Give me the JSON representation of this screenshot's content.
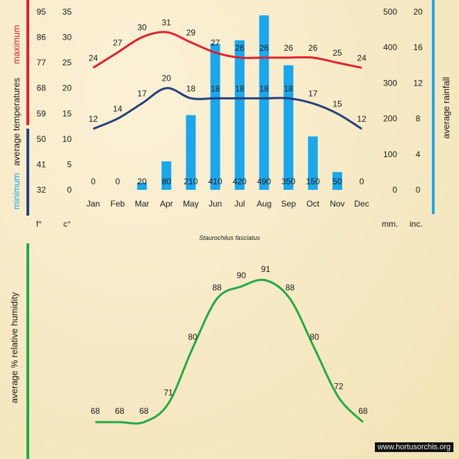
{
  "caption": "Staurochilus fasciatus",
  "watermark": "www.hortusorchis.org",
  "unit_labels": {
    "fahrenheit": "f°",
    "celsius": "c°",
    "mm": "mm.",
    "inches": "inc."
  },
  "axis_titles": {
    "temp_minimum": "minimum",
    "temp_average": "average",
    "temp_temperatures": "temperatures",
    "temp_maximum": "maximum",
    "rainfall": "average rainfall",
    "humidity": "average %  relative humidity"
  },
  "colors": {
    "max": "#e0202a",
    "min": "#233f7c",
    "rain": "#1aa7ec",
    "humidity": "#22a845",
    "left_bar_red": "#e0202a",
    "left_bar_blue": "#233f7c",
    "right_bar": "#1aa7ec",
    "hum_bar": "#22a845"
  },
  "chart_data": [
    {
      "type": "bar",
      "title": "",
      "categories": [
        "Jan",
        "Feb",
        "Mar",
        "Apr",
        "May",
        "Jun",
        "Jul",
        "Aug",
        "Sep",
        "Oct",
        "Nov",
        "Dec"
      ],
      "series": [
        {
          "name": "maximum",
          "type": "line",
          "axis": "celsius",
          "values": [
            24,
            27,
            30,
            31,
            29,
            27,
            26,
            26,
            26,
            26,
            25,
            24
          ]
        },
        {
          "name": "minimum",
          "type": "line",
          "axis": "celsius",
          "values": [
            12,
            14,
            17,
            20,
            18,
            18,
            18,
            18,
            18,
            17,
            15,
            12
          ]
        },
        {
          "name": "average rainfall",
          "type": "bar",
          "axis": "mm",
          "values": [
            0,
            0,
            20,
            80,
            210,
            410,
            420,
            490,
            350,
            150,
            50,
            0
          ]
        }
      ],
      "axes": {
        "fahrenheit": {
          "ticks": [
            32,
            41,
            50,
            59,
            68,
            77,
            86,
            95
          ]
        },
        "celsius": {
          "ticks": [
            0,
            5,
            10,
            15,
            20,
            25,
            30,
            35
          ],
          "range": [
            0,
            35
          ]
        },
        "mm": {
          "ticks": [
            0,
            100,
            200,
            300,
            400,
            500
          ],
          "range": [
            0,
            500
          ]
        },
        "inches": {
          "ticks": [
            0,
            4,
            8,
            12,
            16,
            20
          ]
        }
      },
      "grid": false
    },
    {
      "type": "line",
      "title": "",
      "categories": [
        "Jan",
        "Feb",
        "Mar",
        "Apr",
        "May",
        "Jun",
        "Jul",
        "Aug",
        "Sep",
        "Oct",
        "Nov",
        "Dec"
      ],
      "series": [
        {
          "name": "average % relative humidity",
          "values": [
            68,
            68,
            68,
            71,
            80,
            88,
            90,
            91,
            88,
            80,
            72,
            68
          ]
        }
      ],
      "ylim": [
        66,
        93
      ],
      "grid": false
    }
  ]
}
